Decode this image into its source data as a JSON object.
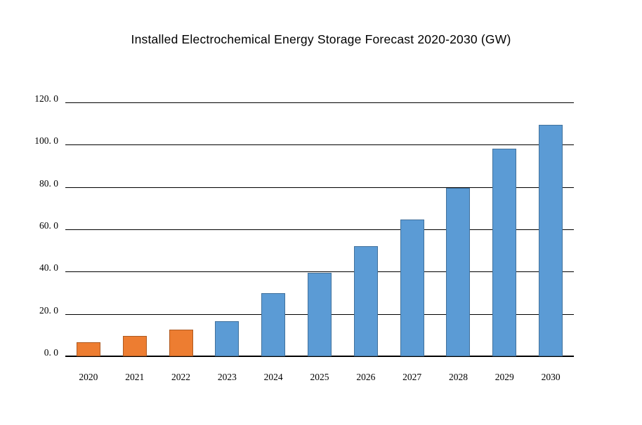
{
  "title": "Installed Electrochemical Energy Storage Forecast 2020-2030 (GW)",
  "colors": {
    "background": "#FFFFFF",
    "gridline": "#000000",
    "text": "#000000",
    "orange_fill": "#ED7D31",
    "orange_border": "#AE5A21",
    "blue_fill": "#5B9BD5",
    "blue_border": "#41719C"
  },
  "chart_data": {
    "type": "bar",
    "title": "Installed Electrochemical Energy Storage Forecast 2020-2030 (GW)",
    "xlabel": "",
    "ylabel": "",
    "categories": [
      "2020",
      "2021",
      "2022",
      "2023",
      "2024",
      "2025",
      "2026",
      "2027",
      "2028",
      "2029",
      "2030"
    ],
    "values": [
      6.7,
      9.5,
      12.5,
      16.5,
      30,
      39.5,
      52,
      64.5,
      79.5,
      98,
      109.5
    ],
    "bar_fill": [
      "#ED7D31",
      "#ED7D31",
      "#ED7D31",
      "#5B9BD5",
      "#5B9BD5",
      "#5B9BD5",
      "#5B9BD5",
      "#5B9BD5",
      "#5B9BD5",
      "#5B9BD5",
      "#5B9BD5"
    ],
    "bar_border": [
      "#AE5A21",
      "#AE5A21",
      "#AE5A21",
      "#41719C",
      "#41719C",
      "#41719C",
      "#41719C",
      "#41719C",
      "#41719C",
      "#41719C",
      "#41719C"
    ],
    "ylim": [
      0,
      120
    ],
    "ytick_interval": 20,
    "ytick_labels": [
      "0. 0",
      "20. 0",
      "40. 0",
      "60. 0",
      "80. 0",
      "100. 0",
      "120. 0"
    ],
    "grid": true,
    "legend": false
  }
}
